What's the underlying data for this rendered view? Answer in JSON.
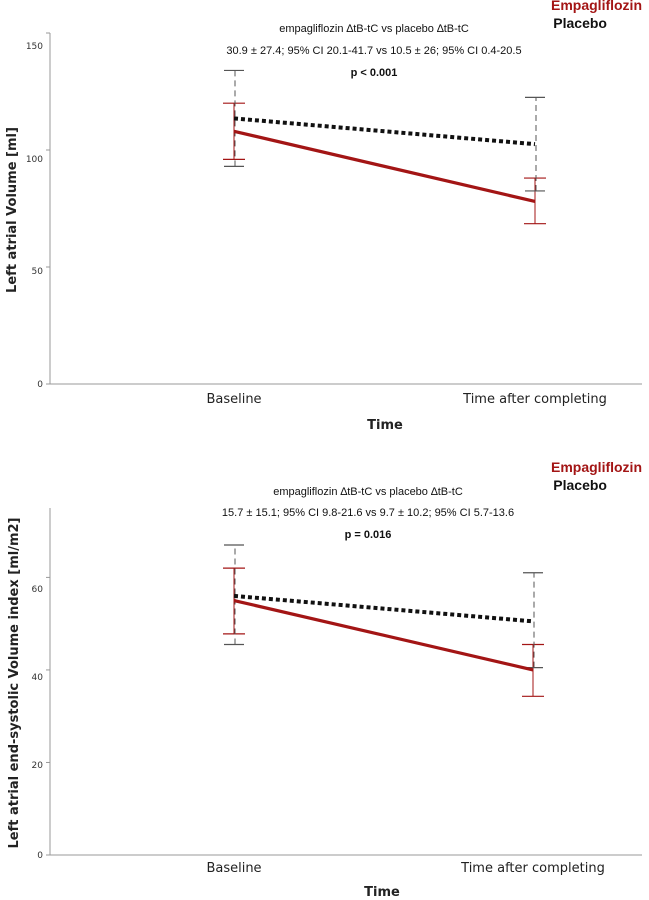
{
  "colors": {
    "empagliflozin": "#a31515",
    "placebo": "#111111",
    "axis": "#999999"
  },
  "chart_data": [
    {
      "type": "line",
      "categories": [
        "Baseline",
        "Time after completing"
      ],
      "xlabel": "Time",
      "ylabel": "Left atrial Volume [ml]",
      "ylim": [
        0,
        150
      ],
      "yticks": [
        0,
        50,
        100,
        150
      ],
      "legend": [
        "Empagliflozin",
        "Placebo"
      ],
      "legend_position": "top-right",
      "annotation": {
        "line1": "empagliflozin ∆tB-tC vs placebo ∆tB-tC",
        "line2": "30.9 ± 27.4; 95% CI 20.1-41.7 vs 10.5 ± 26; 95% CI 0.4-20.5",
        "pvalue": "p < 0.001"
      },
      "series": [
        {
          "name": "Empagliflozin",
          "style": "solid",
          "color": "#a31515",
          "values": [
            108,
            78
          ],
          "ci_low": [
            96,
            68.5
          ],
          "ci_high": [
            120,
            88
          ]
        },
        {
          "name": "Placebo",
          "style": "dotted",
          "color": "#111111",
          "values": [
            113.5,
            102.5
          ],
          "ci_low": [
            93,
            82.5
          ],
          "ci_high": [
            134,
            122.5
          ]
        }
      ]
    },
    {
      "type": "line",
      "categories": [
        "Baseline",
        "Time after completing"
      ],
      "xlabel": "Time",
      "ylabel": "Left atrial end-systolic Volume index [ml/m2]",
      "ylim": [
        0,
        75
      ],
      "yticks": [
        0,
        20,
        40,
        60
      ],
      "legend": [
        "Empagliflozin",
        "Placebo"
      ],
      "legend_position": "top-right",
      "annotation": {
        "line1": "empagliflozin ∆tB-tC vs placebo ∆tB-tC",
        "line2": "15.7 ± 15.1; 95% CI 9.8-21.6 vs 9.7 ± 10.2; 95% CI 5.7-13.6",
        "pvalue": "p = 0.016"
      },
      "series": [
        {
          "name": "Empagliflozin",
          "style": "solid",
          "color": "#a31515",
          "values": [
            55,
            40
          ],
          "ci_low": [
            47.8,
            34.3
          ],
          "ci_high": [
            62,
            45.5
          ]
        },
        {
          "name": "Placebo",
          "style": "dotted",
          "color": "#111111",
          "values": [
            56,
            50.5
          ],
          "ci_low": [
            45.5,
            40.5
          ],
          "ci_high": [
            67,
            61
          ]
        }
      ]
    }
  ]
}
